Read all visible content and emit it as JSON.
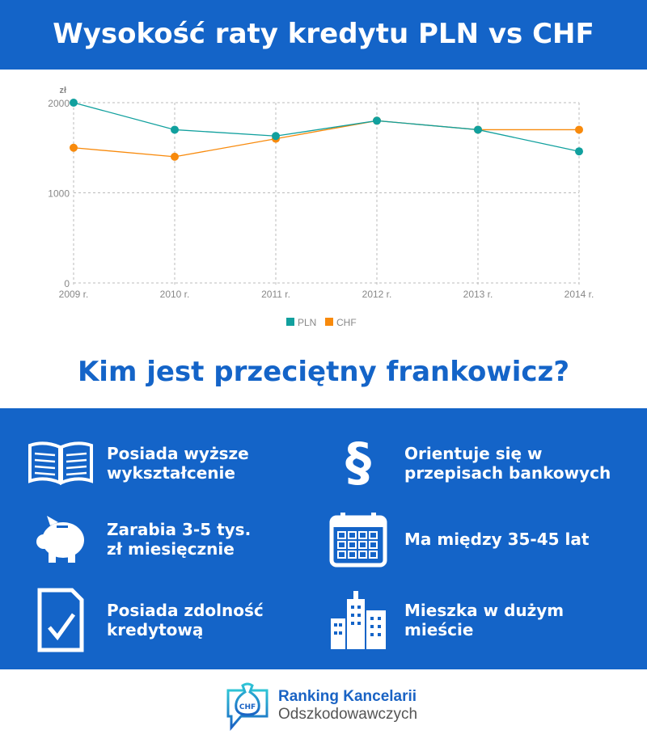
{
  "header": {
    "title": "Wysokość raty kredytu PLN vs CHF"
  },
  "chart_data": {
    "type": "line",
    "ylabel": "zł",
    "categories": [
      "2009 r.",
      "2010 r.",
      "2011 r.",
      "2012 r.",
      "2013 r.",
      "2014 r."
    ],
    "yticks": [
      0,
      1000,
      2000
    ],
    "ylim": [
      0,
      2000
    ],
    "grid": true,
    "legend": "bottom",
    "series": [
      {
        "name": "PLN",
        "color": "#11a09e",
        "values": [
          2000,
          1700,
          1630,
          1800,
          1700,
          1460
        ]
      },
      {
        "name": "CHF",
        "color": "#f88a0c",
        "values": [
          1500,
          1400,
          1600,
          1800,
          1700,
          1700
        ]
      }
    ]
  },
  "subtitle": "Kim jest przeciętny frankowicz?",
  "features": [
    {
      "icon": "open-book-icon",
      "text1": "Posiada wyższe",
      "text2": "wykształcenie"
    },
    {
      "icon": "paragraph-icon",
      "text1": "Orientuje się w",
      "text2": "przepisach bankowych"
    },
    {
      "icon": "piggy-bank-icon",
      "text1": "Zarabia 3-5 tys.",
      "text2": "zł miesięcznie"
    },
    {
      "icon": "calendar-icon",
      "text1": "Ma między 35-45 lat",
      "text2": ""
    },
    {
      "icon": "document-check-icon",
      "text1": "Posiada zdolność",
      "text2": "kredytową"
    },
    {
      "icon": "city-buildings-icon",
      "text1": "Mieszka w dużym",
      "text2": "mieście"
    }
  ],
  "footer": {
    "logo_text": "CHF",
    "brand_line1": "Ranking Kancelarii",
    "brand_line2": "Odszkodowawczych"
  }
}
